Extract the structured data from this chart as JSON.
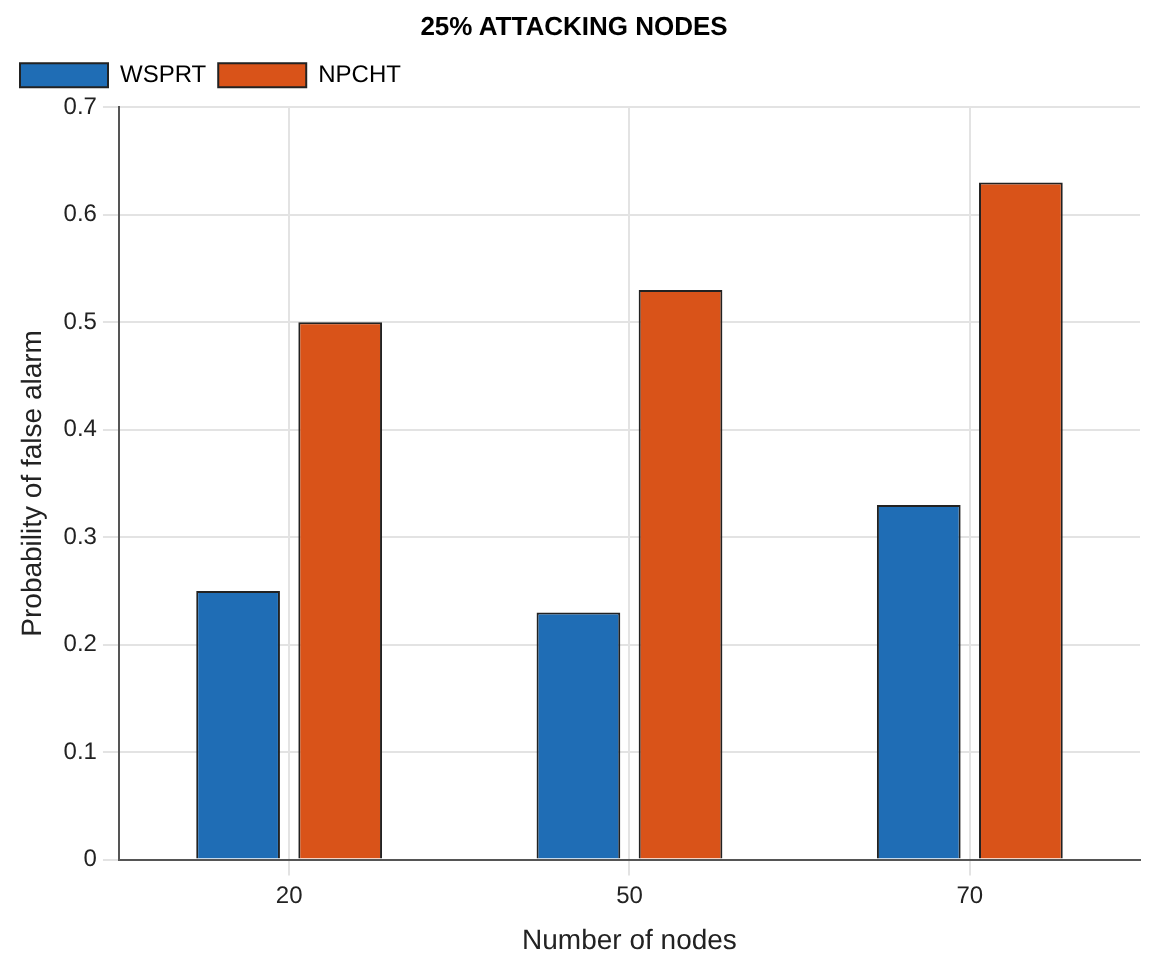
{
  "chart_data": {
    "type": "bar",
    "title": "25% ATTACKING NODES",
    "xlabel": "Number of nodes",
    "ylabel": "Probability of false alarm",
    "categories": [
      "20",
      "50",
      "70"
    ],
    "series": [
      {
        "name": "WSPRT",
        "color": "#1f6db5",
        "values": [
          0.25,
          0.23,
          0.33
        ]
      },
      {
        "name": "NPCHT",
        "color": "#d95319",
        "values": [
          0.5,
          0.53,
          0.63
        ]
      }
    ],
    "ylim": [
      0,
      0.7
    ],
    "yticks": [
      0,
      0.1,
      0.2,
      0.3,
      0.4,
      0.5,
      0.6,
      0.7
    ],
    "grid": true,
    "legend": "top left"
  }
}
